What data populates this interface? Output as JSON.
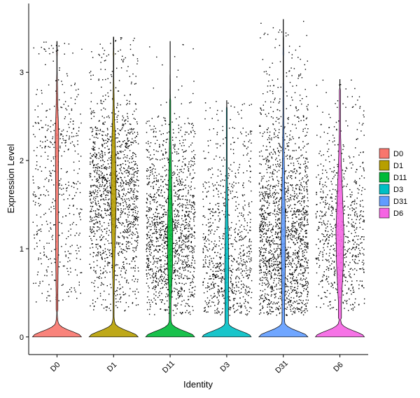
{
  "chart_data": {
    "type": "violin",
    "title": "",
    "xlabel": "Identity",
    "ylabel": "Expression Level",
    "ylim": [
      -0.2,
      3.78
    ],
    "yticks": [
      0,
      1,
      2,
      3
    ],
    "categories": [
      "D0",
      "D1",
      "D11",
      "D3",
      "D31",
      "D6"
    ],
    "colors": [
      "#F8766D",
      "#B79F00",
      "#00BA38",
      "#00BFC4",
      "#619CFF",
      "#F564E3"
    ],
    "legend_position": "right",
    "series": [
      {
        "name": "D0",
        "max": 3.35,
        "zero_peak": 0.42,
        "nonzero_range": [
          0.4,
          3.2
        ],
        "nonzero_density": [
          [
            0.5,
            0.08
          ],
          [
            1.0,
            0.12
          ],
          [
            1.5,
            0.12
          ],
          [
            2.0,
            0.14
          ],
          [
            2.3,
            0.16
          ],
          [
            2.6,
            0.08
          ],
          [
            3.0,
            0.02
          ]
        ],
        "cells": 450
      },
      {
        "name": "D1",
        "max": 3.4,
        "zero_peak": 0.5,
        "nonzero_range": [
          0.3,
          3.2
        ],
        "nonzero_density": [
          [
            0.5,
            0.05
          ],
          [
            1.0,
            0.13
          ],
          [
            1.5,
            0.24
          ],
          [
            1.8,
            0.22
          ],
          [
            2.2,
            0.16
          ],
          [
            2.6,
            0.06
          ],
          [
            3.0,
            0.02
          ]
        ],
        "cells": 1400
      },
      {
        "name": "D11",
        "max": 3.35,
        "zero_peak": 0.55,
        "nonzero_range": [
          0.25,
          2.5
        ],
        "nonzero_density": [
          [
            0.4,
            0.08
          ],
          [
            0.8,
            0.22
          ],
          [
            1.2,
            0.24
          ],
          [
            1.6,
            0.16
          ],
          [
            2.0,
            0.1
          ],
          [
            2.3,
            0.05
          ]
        ],
        "cells": 1350
      },
      {
        "name": "D3",
        "max": 2.68,
        "zero_peak": 0.5,
        "nonzero_range": [
          0.25,
          2.4
        ],
        "nonzero_density": [
          [
            0.4,
            0.16
          ],
          [
            0.8,
            0.18
          ],
          [
            1.2,
            0.14
          ],
          [
            1.6,
            0.08
          ],
          [
            2.0,
            0.04
          ]
        ],
        "cells": 800
      },
      {
        "name": "D31",
        "max": 3.6,
        "zero_peak": 0.5,
        "nonzero_range": [
          0.25,
          3.2
        ],
        "nonzero_density": [
          [
            0.4,
            0.12
          ],
          [
            0.8,
            0.18
          ],
          [
            1.2,
            0.2
          ],
          [
            1.6,
            0.14
          ],
          [
            2.0,
            0.08
          ],
          [
            2.5,
            0.04
          ],
          [
            3.0,
            0.02
          ]
        ],
        "cells": 1700
      },
      {
        "name": "D6",
        "max": 2.92,
        "zero_peak": 0.7,
        "nonzero_range": [
          0.3,
          2.6
        ],
        "nonzero_density": [
          [
            0.4,
            0.14
          ],
          [
            0.8,
            0.3
          ],
          [
            1.2,
            0.36
          ],
          [
            1.6,
            0.24
          ],
          [
            2.0,
            0.12
          ],
          [
            2.4,
            0.05
          ]
        ],
        "cells": 700
      }
    ]
  }
}
